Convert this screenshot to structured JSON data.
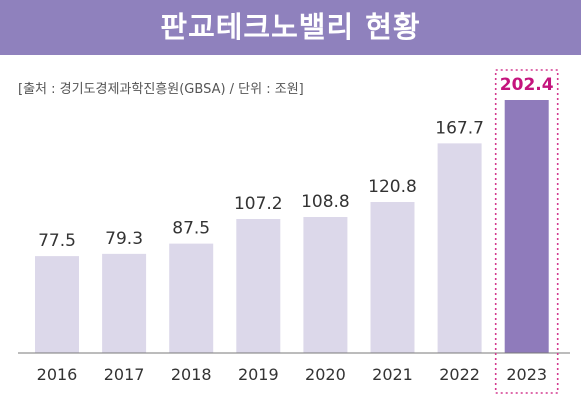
{
  "header": {
    "title": "판교테크노밸리 현황"
  },
  "source_note": "[출처 : 경기도경제과학진흥원(GBSA) / 단위 : 조원]",
  "colors": {
    "banner": "#8f81bd",
    "bar": "#dcd8ea",
    "bar_highlight": "#8f7bbb",
    "highlight_text": "#c4147d",
    "dotted_box": "#d43a8f"
  },
  "chart_data": {
    "type": "bar",
    "title": "판교테크노밸리 현황",
    "categories": [
      "2016",
      "2017",
      "2018",
      "2019",
      "2020",
      "2021",
      "2022",
      "2023"
    ],
    "values": [
      77.5,
      79.3,
      87.5,
      107.2,
      108.8,
      120.8,
      167.7,
      202.4
    ],
    "value_labels": [
      "77.5",
      "79.3",
      "87.5",
      "107.2",
      "108.8",
      "120.8",
      "167.7",
      "202.4"
    ],
    "highlight_index": 7,
    "ylim": [
      0,
      210
    ],
    "grid": false,
    "legend": "none"
  }
}
